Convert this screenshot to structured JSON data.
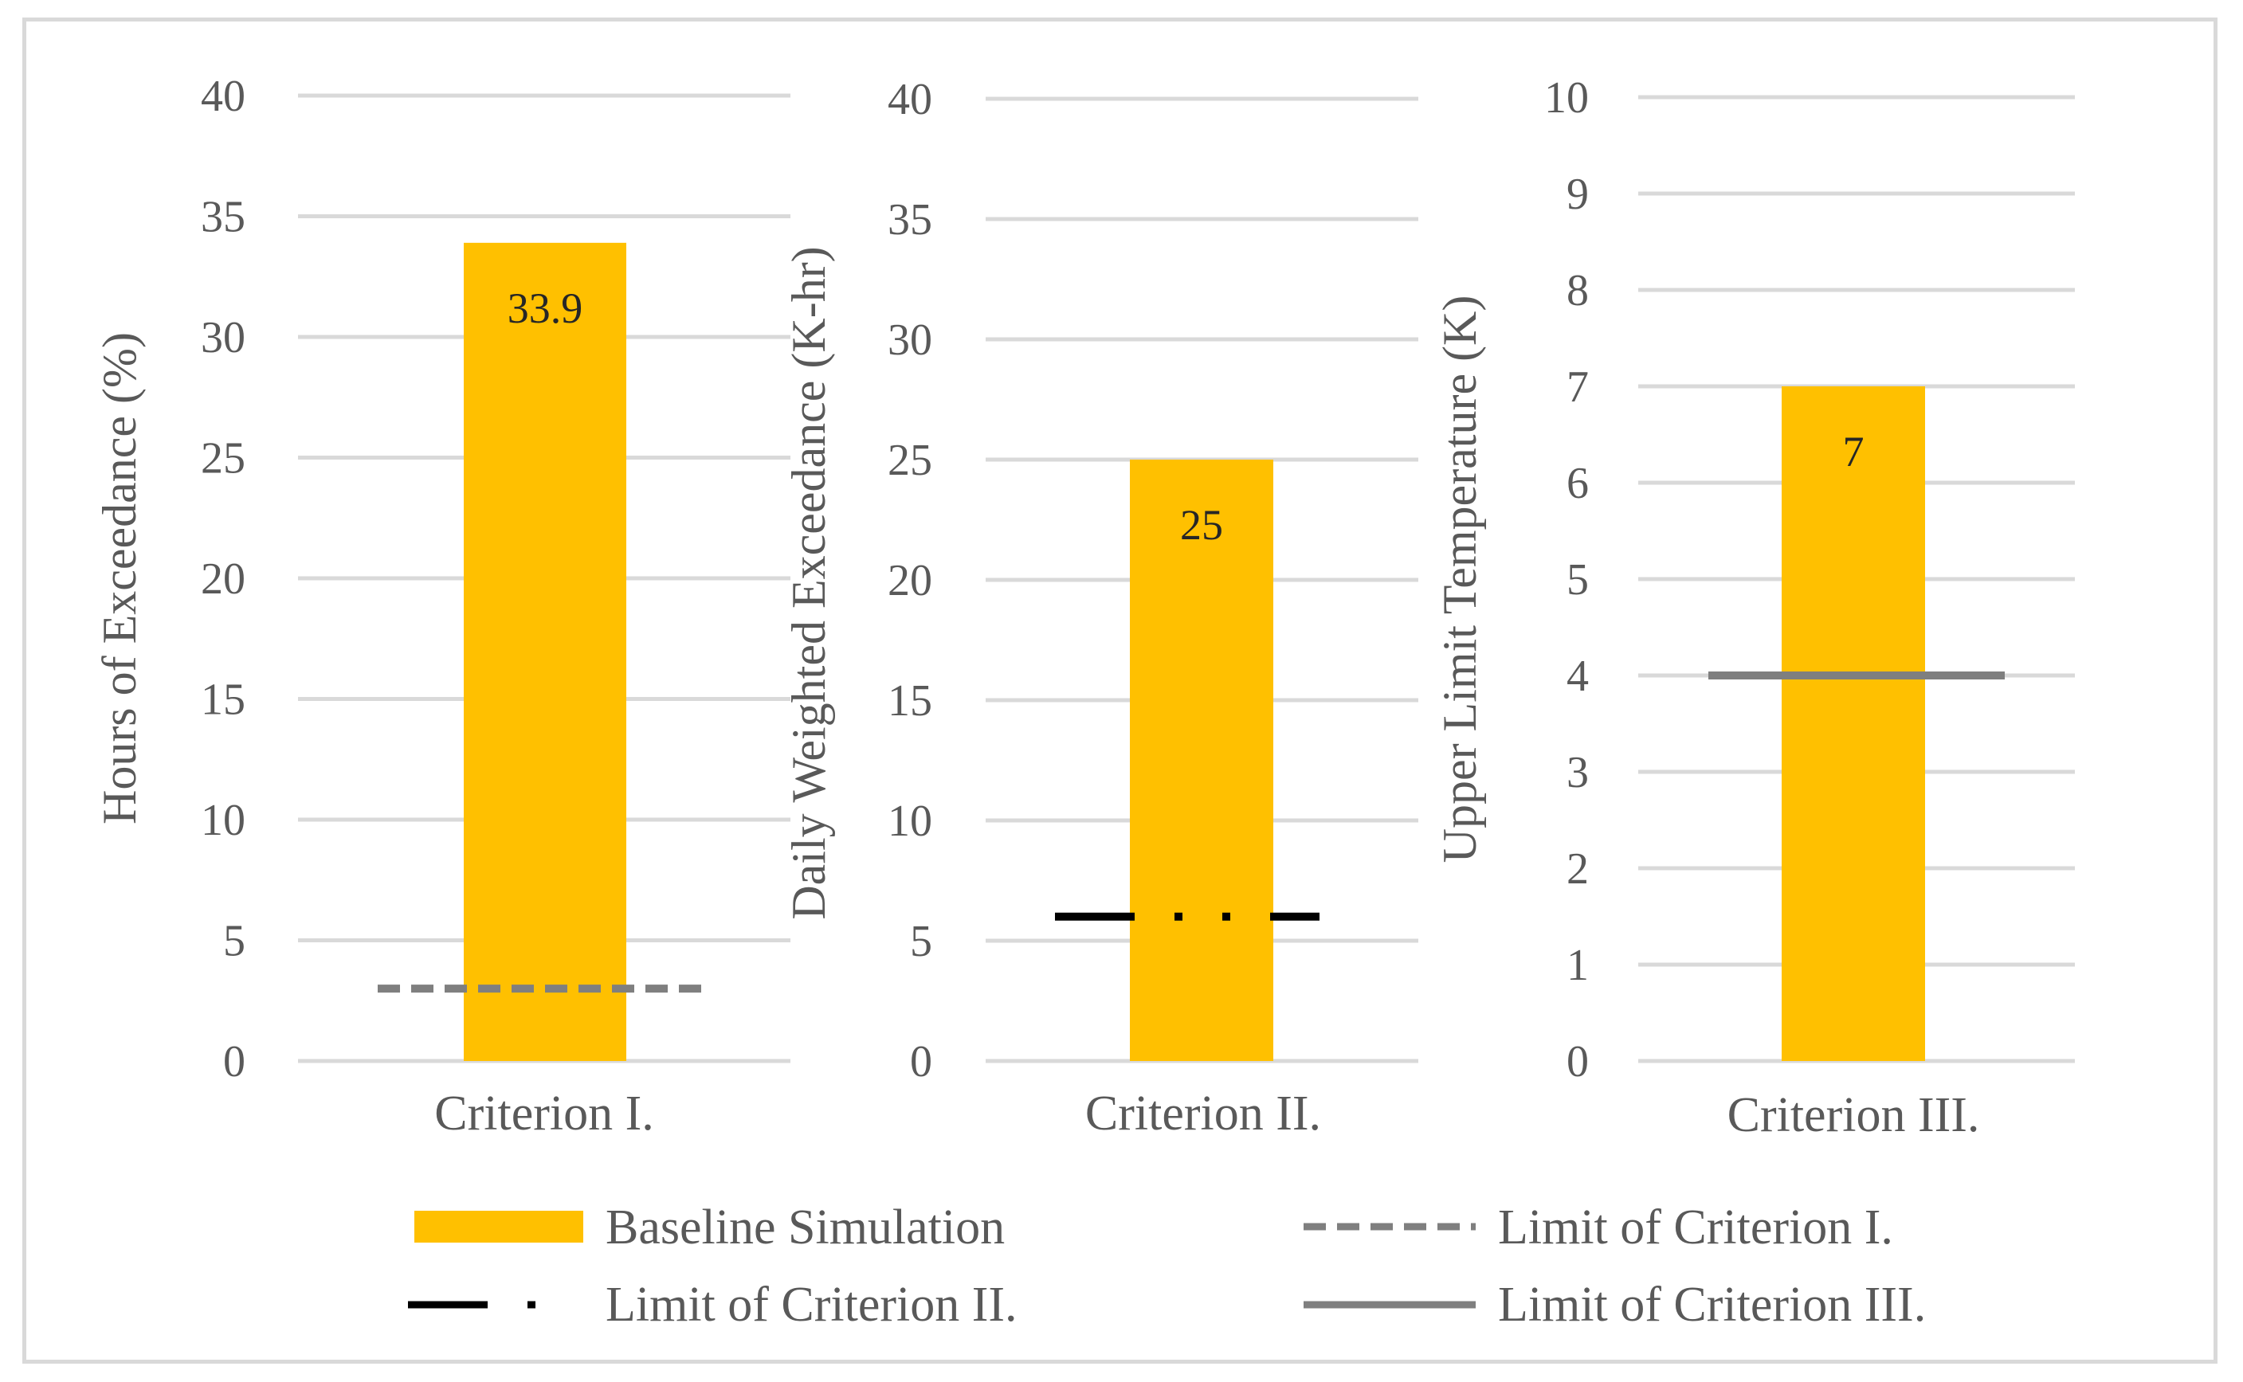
{
  "chart_data": [
    {
      "type": "bar",
      "categories": [
        "Criterion I."
      ],
      "ylabel": "Hours of Exceedance (%)",
      "ylim": [
        0,
        40
      ],
      "yticks": [
        0,
        5,
        10,
        15,
        20,
        25,
        30,
        35,
        40
      ],
      "series": [
        {
          "name": "Baseline Simulation",
          "values": [
            33.9
          ],
          "color": "#ffc000"
        }
      ],
      "data_labels": [
        "33.9"
      ],
      "limit": {
        "name": "Limit of Criterion I.",
        "value": 3,
        "style": "dashed",
        "color": "#7f7f7f"
      },
      "grid": true
    },
    {
      "type": "bar",
      "categories": [
        "Criterion II."
      ],
      "ylabel": "Daily Weighted Exceedance (K-hr)",
      "ylim": [
        0,
        40
      ],
      "yticks": [
        0,
        5,
        10,
        15,
        20,
        25,
        30,
        35,
        40
      ],
      "series": [
        {
          "name": "Baseline Simulation",
          "values": [
            25
          ],
          "color": "#ffc000"
        }
      ],
      "data_labels": [
        "25"
      ],
      "limit": {
        "name": "Limit of Criterion II.",
        "value": 6,
        "style": "dash-dot-dot",
        "color": "#000000"
      },
      "grid": true
    },
    {
      "type": "bar",
      "categories": [
        "Criterion III."
      ],
      "ylabel": "Upper Limit Temperature (K)",
      "ylim": [
        0,
        10
      ],
      "yticks": [
        0,
        1,
        2,
        3,
        4,
        5,
        6,
        7,
        8,
        9,
        10
      ],
      "series": [
        {
          "name": "Baseline Simulation",
          "values": [
            7
          ],
          "color": "#ffc000"
        }
      ],
      "data_labels": [
        "7"
      ],
      "limit": {
        "name": "Limit of Criterion III.",
        "value": 4,
        "style": "solid",
        "color": "#7f7f7f"
      },
      "grid": true
    }
  ],
  "legend": {
    "placement": "bottom",
    "items": [
      {
        "label": "Baseline Simulation",
        "kind": "bar",
        "color": "#ffc000"
      },
      {
        "label": "Limit of Criterion I.",
        "kind": "dashed",
        "color": "#7f7f7f"
      },
      {
        "label": "Limit of Criterion II.",
        "kind": "dash-dot-dot",
        "color": "#000000"
      },
      {
        "label": "Limit of Criterion III.",
        "kind": "solid",
        "color": "#7f7f7f"
      }
    ]
  },
  "colors": {
    "bar": "#ffc000",
    "grid": "#d9d9d9",
    "text": "#595959"
  }
}
